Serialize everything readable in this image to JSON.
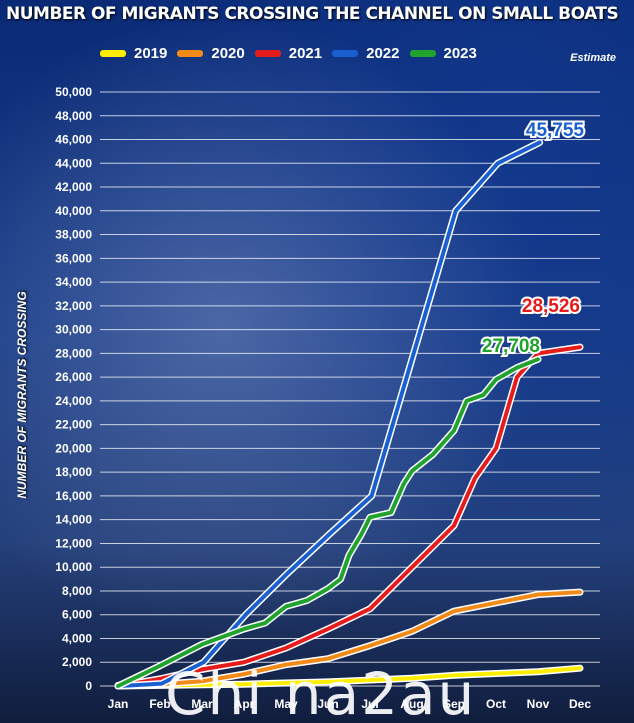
{
  "title": "NUMBER OF MIGRANTS CROSSING THE CHANNEL ON SMALL BOATS",
  "estimate_label": "Estimate",
  "watermark": "Chi na2au",
  "chart_data": {
    "type": "line",
    "title": "NUMBER OF MIGRANTS CROSSING THE CHANNEL ON SMALL BOATS",
    "xlabel": "",
    "ylabel": "NUMBER OF MIGRANTS CROSSING",
    "categories": [
      "Jan",
      "Feb",
      "Mar",
      "Apr",
      "May",
      "Jun",
      "Jul",
      "Aug",
      "Sep",
      "Oct",
      "Nov",
      "Dec"
    ],
    "ylim": [
      0,
      50000
    ],
    "yticks": [
      0,
      2000,
      4000,
      6000,
      8000,
      10000,
      12000,
      14000,
      16000,
      18000,
      20000,
      22000,
      24000,
      26000,
      28000,
      30000,
      32000,
      34000,
      36000,
      38000,
      40000,
      42000,
      44000,
      46000,
      48000,
      50000
    ],
    "ytick_labels": [
      "0",
      "2,000",
      "4,000",
      "6,000",
      "8,000",
      "10,000",
      "12,000",
      "14,000",
      "16,000",
      "18,000",
      "20,000",
      "22,000",
      "24,000",
      "26,000",
      "28,000",
      "30,000",
      "32,000",
      "34,000",
      "36,000",
      "38,000",
      "40,000",
      "42,000",
      "44,000",
      "46,000",
      "48,000",
      "50,000"
    ],
    "grid": true,
    "legend_position": "top",
    "series": [
      {
        "name": "2019",
        "color": "#ffee00",
        "points": [
          [
            0,
            0
          ],
          [
            1,
            50
          ],
          [
            2,
            100
          ],
          [
            3,
            150
          ],
          [
            4,
            250
          ],
          [
            5,
            350
          ],
          [
            6,
            500
          ],
          [
            7,
            650
          ],
          [
            8,
            900
          ],
          [
            9,
            1050
          ],
          [
            10,
            1200
          ],
          [
            11,
            1500
          ]
        ]
      },
      {
        "name": "2020",
        "color": "#f28a17",
        "points": [
          [
            0,
            50
          ],
          [
            1,
            150
          ],
          [
            2,
            400
          ],
          [
            3,
            1000
          ],
          [
            4,
            1800
          ],
          [
            5,
            2300
          ],
          [
            6,
            3400
          ],
          [
            7,
            4600
          ],
          [
            8,
            6300
          ],
          [
            9,
            7000
          ],
          [
            10,
            7700
          ],
          [
            11,
            7900
          ]
        ]
      },
      {
        "name": "2021",
        "color": "#e61b1b",
        "points": [
          [
            0,
            0
          ],
          [
            1,
            600
          ],
          [
            2,
            1400
          ],
          [
            3,
            2000
          ],
          [
            4,
            3200
          ],
          [
            5,
            4800
          ],
          [
            6,
            6500
          ],
          [
            7,
            10000
          ],
          [
            8,
            13500
          ],
          [
            8.5,
            17500
          ],
          [
            9,
            20000
          ],
          [
            9.5,
            26000
          ],
          [
            10,
            28000
          ],
          [
            11,
            28526
          ]
        ],
        "end_label": "28,526"
      },
      {
        "name": "2022",
        "color": "#1a5fd0",
        "points": [
          [
            0,
            0
          ],
          [
            1,
            200
          ],
          [
            2,
            2000
          ],
          [
            3,
            6000
          ],
          [
            4,
            9500
          ],
          [
            5,
            12800
          ],
          [
            6,
            16000
          ],
          [
            7,
            28000
          ],
          [
            8,
            40000
          ],
          [
            9,
            44000
          ],
          [
            10,
            45755
          ]
        ],
        "x_offset": 1,
        "end_label": "45,755"
      },
      {
        "name": "2023",
        "color": "#22a32e",
        "points": [
          [
            0,
            0
          ],
          [
            1,
            1700
          ],
          [
            2,
            3500
          ],
          [
            3,
            4800
          ],
          [
            3.5,
            5300
          ],
          [
            4,
            6700
          ],
          [
            4.5,
            7200
          ],
          [
            5,
            8200
          ],
          [
            5.3,
            9000
          ],
          [
            5.5,
            11000
          ],
          [
            5.8,
            12800
          ],
          [
            6,
            14200
          ],
          [
            6.5,
            14600
          ],
          [
            6.8,
            17000
          ],
          [
            7,
            18100
          ],
          [
            7.5,
            19500
          ],
          [
            8,
            21500
          ],
          [
            8.3,
            24000
          ],
          [
            8.7,
            24500
          ],
          [
            9,
            25800
          ],
          [
            9.5,
            26800
          ],
          [
            10,
            27500
          ]
        ],
        "end_label": "27,708"
      }
    ]
  }
}
